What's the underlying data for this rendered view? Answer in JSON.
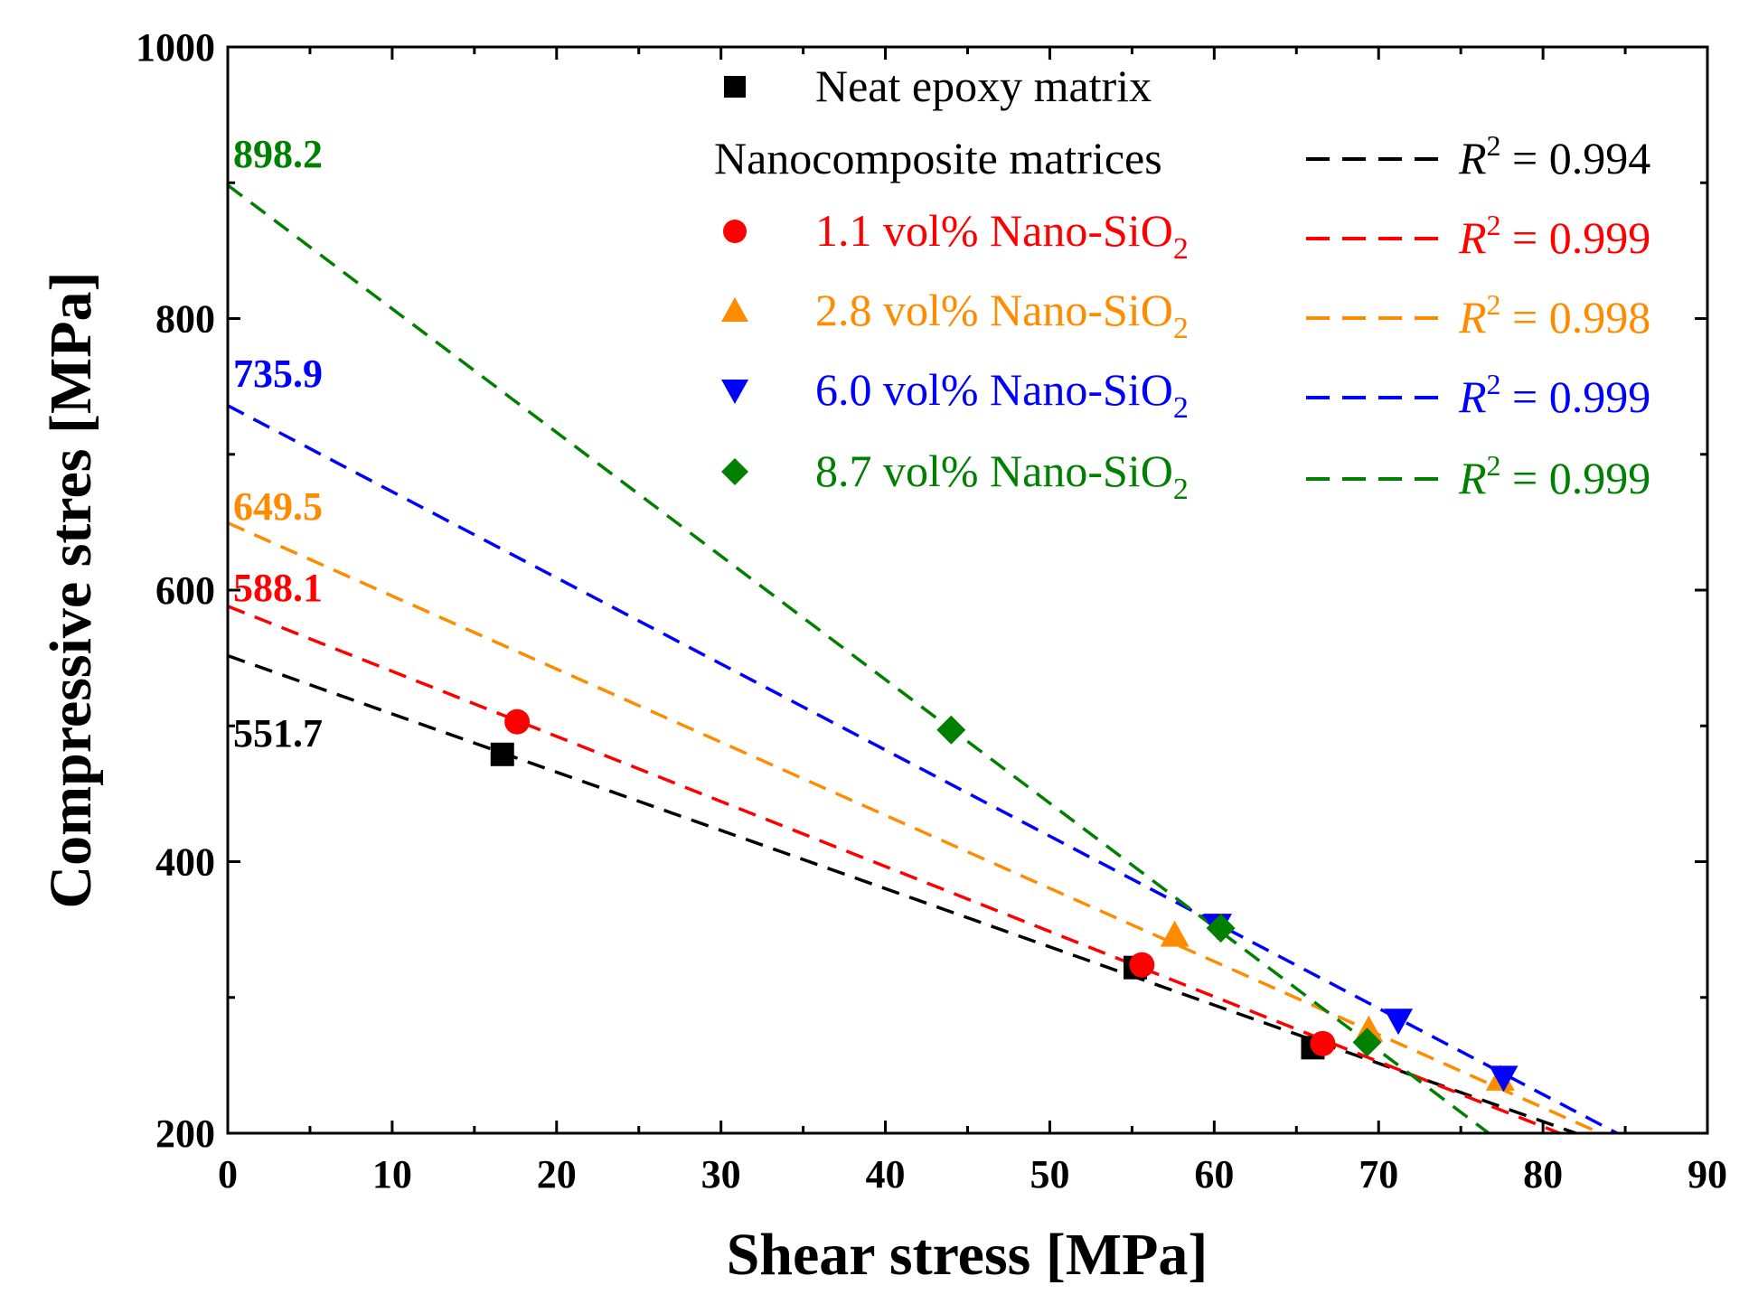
{
  "chart_data": {
    "type": "scatter",
    "title": "",
    "xlabel": "Shear stress [MPa]",
    "ylabel": "Compressive stres [MPa]",
    "xlim": [
      0,
      90
    ],
    "ylim": [
      200,
      1000
    ],
    "xticks": [
      0,
      10,
      20,
      30,
      40,
      50,
      60,
      70,
      80,
      90
    ],
    "yticks": [
      200,
      400,
      600,
      800,
      1000
    ],
    "grid": false,
    "legend_position": "top-right",
    "legend_header": "Nanocomposite matrices",
    "series": [
      {
        "name": "Neat epoxy matrix",
        "color": "#000000",
        "marker": "square",
        "points": [
          [
            16.7,
            479
          ],
          [
            55.2,
            322
          ],
          [
            66.0,
            263
          ]
        ],
        "fit": {
          "x": [
            0,
            82
          ],
          "y": [
            551.7,
            200
          ],
          "r2_label": "R",
          "r2_value": "= 0.994"
        },
        "intercept": "551.7"
      },
      {
        "name": "1.1 vol% Nano-SiO",
        "subscript": "2",
        "color": "#ff0000",
        "marker": "circle",
        "points": [
          [
            17.6,
            503
          ],
          [
            55.6,
            324
          ],
          [
            66.6,
            266
          ]
        ],
        "fit": {
          "x": [
            0,
            81
          ],
          "y": [
            588.1,
            200
          ],
          "r2_label": "R",
          "r2_value": "= 0.999"
        },
        "intercept": "588.1"
      },
      {
        "name": "2.8 vol% Nano-SiO",
        "subscript": "2",
        "color": "#ff8c00",
        "marker": "triangle-up",
        "points": [
          [
            57.6,
            346
          ],
          [
            69.4,
            276
          ],
          [
            77.4,
            240
          ]
        ],
        "fit": {
          "x": [
            0,
            83.5
          ],
          "y": [
            649.5,
            200
          ],
          "r2_label": "R",
          "r2_value": "= 0.998"
        },
        "intercept": "649.5"
      },
      {
        "name": "6.0 vol% Nano-SiO",
        "subscript": "2",
        "color": "#0000ff",
        "marker": "triangle-down",
        "points": [
          [
            60.2,
            353
          ],
          [
            71.2,
            283
          ],
          [
            77.6,
            241
          ]
        ],
        "fit": {
          "x": [
            0,
            84.5
          ],
          "y": [
            735.9,
            200
          ],
          "r2_label": "R",
          "r2_value": "= 0.999"
        },
        "intercept": "735.9"
      },
      {
        "name": "8.7 vol% Nano-SiO",
        "subscript": "2",
        "color": "#008000",
        "marker": "diamond",
        "points": [
          [
            44.0,
            497
          ],
          [
            60.4,
            351
          ],
          [
            69.3,
            267
          ]
        ],
        "fit": {
          "x": [
            0,
            76.7
          ],
          "y": [
            898.2,
            200
          ],
          "r2_label": "R",
          "r2_value": "= 0.999"
        },
        "intercept": "898.2"
      }
    ]
  }
}
